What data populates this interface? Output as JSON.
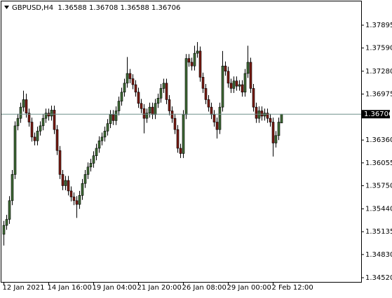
{
  "chart_data": {
    "type": "candlestick",
    "title": "GBPUSD,H4  1.36588 1.36708 1.36588 1.36706",
    "categories": [
      "12 Jan 2021",
      null,
      null,
      null,
      null,
      null,
      null,
      null,
      null,
      null,
      null,
      null,
      null,
      null,
      null,
      null,
      "14 Jan 16:00",
      null,
      null,
      null,
      null,
      null,
      null,
      null,
      null,
      null,
      null,
      null,
      null,
      null,
      null,
      null,
      "19 Jan 04:00",
      null,
      null,
      null,
      null,
      null,
      null,
      null,
      null,
      null,
      null,
      null,
      null,
      null,
      null,
      null,
      "21 Jan 20:00",
      null,
      null,
      null,
      null,
      null,
      null,
      null,
      null,
      null,
      null,
      null,
      null,
      null,
      null,
      null,
      "26 Jan 08:00",
      null,
      null,
      null,
      null,
      null,
      null,
      null,
      null,
      null,
      null,
      null,
      null,
      null,
      null,
      null,
      "29 Jan 00:00",
      null,
      null,
      null,
      null,
      null,
      null,
      null,
      null,
      null,
      null,
      null,
      null,
      null,
      null,
      null,
      "2 Feb 12:00",
      null,
      null,
      null
    ],
    "open": [
      1.351,
      1.3522,
      1.353,
      1.3555,
      1.359,
      1.3655,
      1.3665,
      1.368,
      1.369,
      1.3672,
      1.366,
      1.364,
      1.3635,
      1.3648,
      1.3655,
      1.3665,
      1.3672,
      1.3668,
      1.3676,
      1.365,
      1.3622,
      1.359,
      1.3575,
      1.3582,
      1.3568,
      1.356,
      1.3555,
      1.355,
      1.3562,
      1.3578,
      1.359,
      1.36,
      1.3605,
      1.3615,
      1.3625,
      1.3635,
      1.364,
      1.3648,
      1.3658,
      1.367,
      1.3662,
      1.3675,
      1.3688,
      1.37,
      1.3712,
      1.3725,
      1.3718,
      1.371,
      1.37,
      1.3685,
      1.3678,
      1.3665,
      1.3672,
      1.368,
      1.367,
      1.3685,
      1.3692,
      1.3705,
      1.3712,
      1.369,
      1.3675,
      1.3665,
      1.365,
      1.3625,
      1.3618,
      1.367,
      1.3745,
      1.374,
      1.3735,
      1.3752,
      1.3755,
      1.372,
      1.3705,
      1.369,
      1.368,
      1.367,
      1.366,
      1.365,
      1.368,
      1.3735,
      1.3728,
      1.3712,
      1.3705,
      1.3715,
      1.3708,
      1.371,
      1.37,
      1.3725,
      1.374,
      1.3705,
      1.368,
      1.3665,
      1.3675,
      1.3668,
      1.3672,
      1.3665,
      1.366,
      1.3632,
      1.3642,
      1.36588
    ],
    "high": [
      1.3528,
      1.3536,
      1.3561,
      1.3596,
      1.3661,
      1.3671,
      1.3686,
      1.3702,
      1.3698,
      1.3678,
      1.3666,
      1.3646,
      1.3654,
      1.3661,
      1.3671,
      1.3678,
      1.3678,
      1.3682,
      1.3682,
      1.3656,
      1.3628,
      1.3596,
      1.3588,
      1.3588,
      1.3574,
      1.3566,
      1.3561,
      1.3568,
      1.3584,
      1.3596,
      1.3606,
      1.3611,
      1.3621,
      1.3631,
      1.3641,
      1.3646,
      1.3654,
      1.3664,
      1.3676,
      1.3676,
      1.3681,
      1.3694,
      1.3706,
      1.3718,
      1.3747,
      1.3731,
      1.3724,
      1.3716,
      1.3706,
      1.3691,
      1.3684,
      1.3678,
      1.3686,
      1.3686,
      1.3691,
      1.3698,
      1.3711,
      1.3718,
      1.3718,
      1.3696,
      1.3681,
      1.3671,
      1.3656,
      1.3631,
      1.3676,
      1.3751,
      1.3751,
      1.3746,
      1.3762,
      1.3767,
      1.3761,
      1.3726,
      1.3711,
      1.3696,
      1.3686,
      1.3676,
      1.3666,
      1.3686,
      1.3755,
      1.3741,
      1.3734,
      1.3718,
      1.3721,
      1.3721,
      1.3716,
      1.3716,
      1.3731,
      1.3762,
      1.3746,
      1.3711,
      1.3686,
      1.3681,
      1.3681,
      1.3678,
      1.3678,
      1.3671,
      1.3666,
      1.3648,
      1.3666,
      1.36708
    ],
    "low": [
      1.3495,
      1.3516,
      1.3524,
      1.3549,
      1.3584,
      1.3649,
      1.3659,
      1.3674,
      1.3666,
      1.3654,
      1.3634,
      1.3629,
      1.3629,
      1.3642,
      1.3649,
      1.3659,
      1.3662,
      1.3662,
      1.3644,
      1.3616,
      1.3584,
      1.3569,
      1.3569,
      1.3562,
      1.3554,
      1.3549,
      1.3532,
      1.3544,
      1.3556,
      1.3572,
      1.3584,
      1.3594,
      1.3599,
      1.3609,
      1.3619,
      1.3629,
      1.3634,
      1.3642,
      1.3652,
      1.3656,
      1.3656,
      1.3669,
      1.3682,
      1.3694,
      1.3706,
      1.3712,
      1.3704,
      1.3694,
      1.3679,
      1.3672,
      1.3645,
      1.3659,
      1.3666,
      1.3664,
      1.3664,
      1.3679,
      1.3686,
      1.3699,
      1.3684,
      1.3669,
      1.3659,
      1.3644,
      1.3619,
      1.3612,
      1.3612,
      1.3664,
      1.3734,
      1.3729,
      1.3729,
      1.3746,
      1.3714,
      1.3699,
      1.3684,
      1.3674,
      1.3664,
      1.3654,
      1.3638,
      1.3644,
      1.3674,
      1.3722,
      1.3706,
      1.3699,
      1.3699,
      1.3702,
      1.3702,
      1.3694,
      1.3694,
      1.3719,
      1.3699,
      1.3674,
      1.3659,
      1.3659,
      1.3662,
      1.3662,
      1.3659,
      1.3654,
      1.3614,
      1.3626,
      1.3636,
      1.36588
    ],
    "close": [
      1.3522,
      1.353,
      1.3555,
      1.359,
      1.3655,
      1.3665,
      1.368,
      1.369,
      1.3672,
      1.366,
      1.364,
      1.3635,
      1.3648,
      1.3655,
      1.3665,
      1.3672,
      1.3668,
      1.3676,
      1.365,
      1.3622,
      1.359,
      1.3575,
      1.3582,
      1.3568,
      1.356,
      1.3555,
      1.355,
      1.3562,
      1.3578,
      1.359,
      1.36,
      1.3605,
      1.3615,
      1.3625,
      1.3635,
      1.364,
      1.3648,
      1.3658,
      1.367,
      1.3662,
      1.3675,
      1.3688,
      1.37,
      1.3712,
      1.3725,
      1.3718,
      1.371,
      1.37,
      1.3685,
      1.3678,
      1.3665,
      1.3672,
      1.368,
      1.367,
      1.3685,
      1.3692,
      1.3705,
      1.3712,
      1.369,
      1.3675,
      1.3665,
      1.365,
      1.3625,
      1.3618,
      1.367,
      1.3745,
      1.374,
      1.3735,
      1.3752,
      1.3755,
      1.372,
      1.3705,
      1.369,
      1.368,
      1.367,
      1.366,
      1.365,
      1.368,
      1.3735,
      1.3728,
      1.3712,
      1.3705,
      1.3715,
      1.3708,
      1.371,
      1.37,
      1.3725,
      1.374,
      1.3705,
      1.368,
      1.3665,
      1.3675,
      1.3668,
      1.3672,
      1.3665,
      1.366,
      1.3632,
      1.3642,
      1.366,
      1.36706
    ],
    "up_color": "#3f6b35",
    "down_color": "#7a1a12",
    "current_price": 1.36706,
    "current_price_color": "#6f8f8a",
    "ylim": [
      1.34464,
      1.38213
    ],
    "yticks": [
      {
        "value": 1.3452,
        "label": "1.34520"
      },
      {
        "value": 1.3483,
        "label": "1.34830"
      },
      1.35135,
      {
        "value": 1.3544,
        "label": "1.35440"
      },
      {
        "value": 1.3575,
        "label": "1.35750"
      },
      1.36055,
      {
        "value": 1.3636,
        "label": "1.36360"
      },
      1.36975,
      {
        "value": 1.3728,
        "label": "1.37280"
      },
      {
        "value": 1.3759,
        "label": "1.37590"
      },
      1.37895
    ]
  }
}
